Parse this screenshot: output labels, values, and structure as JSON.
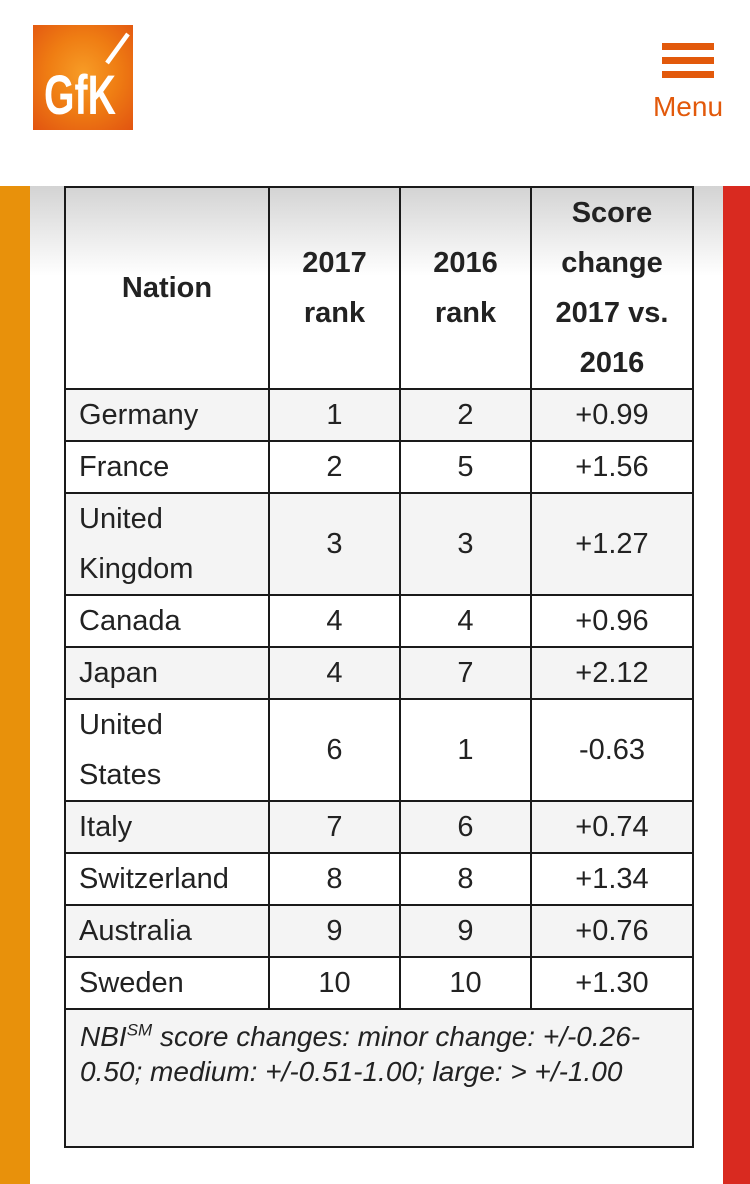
{
  "header": {
    "logo_text": "GfK",
    "menu_label": "Menu"
  },
  "colors": {
    "accent_orange": "#e2590b",
    "stripe_orange": "#e8910b",
    "stripe_red": "#d92a20",
    "row_alt_gray": "#f4f4f4",
    "table_border": "#1a1a1a",
    "text_dark": "#222222"
  },
  "table": {
    "columns": [
      "Nation",
      "2017 rank",
      "2016 rank",
      "Score change 2017 vs. 2016"
    ],
    "rows": [
      {
        "nation": "Germany",
        "rank_2017": "1",
        "rank_2016": "2",
        "score_change": "+0.99"
      },
      {
        "nation": "France",
        "rank_2017": "2",
        "rank_2016": "5",
        "score_change": "+1.56"
      },
      {
        "nation": "United Kingdom",
        "rank_2017": "3",
        "rank_2016": "3",
        "score_change": "+1.27"
      },
      {
        "nation": "Canada",
        "rank_2017": "4",
        "rank_2016": "4",
        "score_change": "+0.96"
      },
      {
        "nation": "Japan",
        "rank_2017": "4",
        "rank_2016": "7",
        "score_change": "+2.12"
      },
      {
        "nation": "United States",
        "rank_2017": "6",
        "rank_2016": "1",
        "score_change": "-0.63"
      },
      {
        "nation": "Italy",
        "rank_2017": "7",
        "rank_2016": "6",
        "score_change": "+0.74"
      },
      {
        "nation": "Switzerland",
        "rank_2017": "8",
        "rank_2016": "8",
        "score_change": "+1.34"
      },
      {
        "nation": "Australia",
        "rank_2017": "9",
        "rank_2016": "9",
        "score_change": "+0.76"
      },
      {
        "nation": "Sweden",
        "rank_2017": "10",
        "rank_2016": "10",
        "score_change": "+1.30"
      }
    ],
    "footnote": {
      "prefix": "NBI",
      "superscript": "SM",
      "rest": " score changes: minor change: +/-0.26-0.50; medium: +/-0.51-1.00; large: > +/-1.00"
    }
  }
}
